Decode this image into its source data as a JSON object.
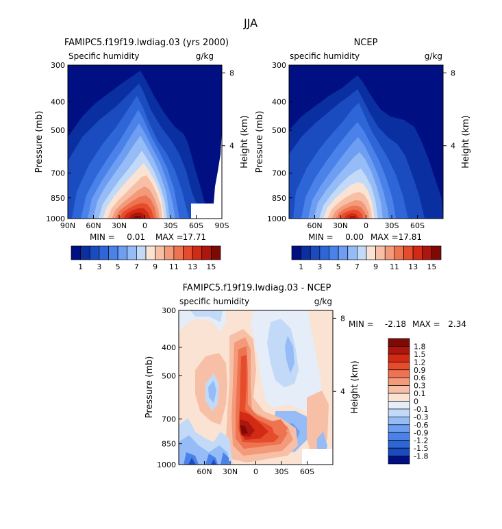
{
  "figure": {
    "title": "JJA"
  },
  "chart_data": [
    {
      "type": "heatmap",
      "title": "FAMIPC5.f19f19.lwdiag.03 (yrs 2000)",
      "subtitle_left": "Specific humidity",
      "subtitle_right": "g/kg",
      "ylabel": "Pressure (mb)",
      "ylabel_right": "Height (km)",
      "x_ticks": [
        "90N",
        "60N",
        "30N",
        "0",
        "30S",
        "60S",
        "90S"
      ],
      "y_ticks": [
        "300",
        "400",
        "500",
        "700",
        "850",
        "1000"
      ],
      "height_ticks": [
        "8",
        "4"
      ],
      "stats": {
        "min_label": "MIN =",
        "min_value": "0.01",
        "max_label": "MAX =",
        "max_value": "17.71"
      },
      "colorbar_labels": [
        "1",
        "3",
        "5",
        "7",
        "9",
        "11",
        "13",
        "15"
      ],
      "colorbar_colors": [
        "#000f82",
        "#0a2fa0",
        "#1a4cc0",
        "#2e66d8",
        "#4b82ea",
        "#6d9ef2",
        "#95bcf6",
        "#c2daf8",
        "#fbe3d3",
        "#f7c0a6",
        "#f39a7a",
        "#ee7350",
        "#e64c2c",
        "#d22a14",
        "#ad160c",
        "#7e0a06"
      ],
      "max_value": 17.71
    },
    {
      "type": "heatmap",
      "title": "NCEP",
      "subtitle_left": "specific humidity",
      "subtitle_right": "g/kg",
      "ylabel": "Pressure (mb)",
      "ylabel_right": "Height (km)",
      "x_ticks": [
        "60N",
        "30N",
        "0",
        "30S",
        "60S"
      ],
      "y_ticks": [
        "300",
        "400",
        "500",
        "700",
        "850",
        "1000"
      ],
      "height_ticks": [
        "8",
        "4"
      ],
      "stats": {
        "min_label": "MIN =",
        "min_value": "0.00",
        "max_label": "MAX =",
        "max_value": "17.81"
      },
      "colorbar_labels": [
        "1",
        "3",
        "5",
        "7",
        "9",
        "11",
        "13",
        "15"
      ],
      "colorbar_colors": [
        "#000f82",
        "#0a2fa0",
        "#1a4cc0",
        "#2e66d8",
        "#4b82ea",
        "#6d9ef2",
        "#95bcf6",
        "#c2daf8",
        "#fbe3d3",
        "#f7c0a6",
        "#f39a7a",
        "#ee7350",
        "#e64c2c",
        "#d22a14",
        "#ad160c",
        "#7e0a06"
      ],
      "max_value": 17.81
    },
    {
      "type": "heatmap",
      "title": "FAMIPC5.f19f19.lwdiag.03 - NCEP",
      "subtitle_left": "specific humidity",
      "subtitle_right": "g/kg",
      "ylabel": "Pressure (mb)",
      "ylabel_right": "Height (km)",
      "x_ticks": [
        "60N",
        "30N",
        "0",
        "30S",
        "60S"
      ],
      "y_ticks": [
        "300",
        "400",
        "500",
        "700",
        "850",
        "1000"
      ],
      "height_ticks": [
        "8",
        "4"
      ],
      "stats": {
        "min_label": "MIN =",
        "min_value": "-2.18",
        "max_label": "MAX =",
        "max_value": "2.34"
      },
      "colorbar_labels": [
        "1.8",
        "1.5",
        "1.2",
        "0.9",
        "0.6",
        "0.3",
        "0.1",
        "0",
        "-0.1",
        "-0.3",
        "-0.6",
        "-0.9",
        "-1.2",
        "-1.5",
        "-1.8"
      ],
      "colorbar_colors": [
        "#7e0a06",
        "#ad160c",
        "#d22a14",
        "#e64c2c",
        "#ee7350",
        "#f39a7a",
        "#f7c0a6",
        "#fbe3d3",
        "#e4edf8",
        "#c2daf8",
        "#95bcf6",
        "#6d9ef2",
        "#4b82ea",
        "#2e66d8",
        "#1a4cc0",
        "#000f82"
      ]
    }
  ]
}
